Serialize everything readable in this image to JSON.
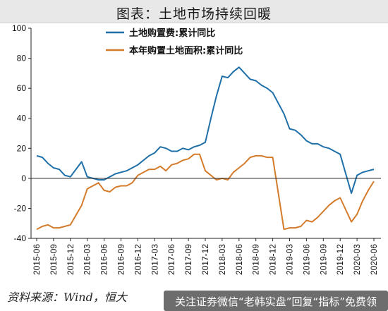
{
  "title": "图表：土地市场持续回暖",
  "source_text": "资料来源：Wind，恒大",
  "banner_text": "关注证券微信“老韩实盘”回复“指标”免费领",
  "chart_data": {
    "type": "line",
    "ylim": [
      -40,
      100
    ],
    "yticks": [
      -40,
      -20,
      0,
      20,
      40,
      60,
      80,
      100
    ],
    "xtick_labels": [
      "2015-06",
      "2015-09",
      "2015-12",
      "2016-03",
      "2016-06",
      "2016-09",
      "2016-12",
      "2017-03",
      "2017-06",
      "2017-09",
      "2017-12",
      "2018-03",
      "2018-06",
      "2018-09",
      "2018-12",
      "2019-03",
      "2019-06",
      "2019-09",
      "2019-12",
      "2020-03",
      "2020-06"
    ],
    "grid": false,
    "legend": "top-left",
    "series": [
      {
        "name": "土地购置费:累计同比",
        "color": "#1f6fa8",
        "points": [
          [
            "2015-06",
            15
          ],
          [
            "2015-07",
            14
          ],
          [
            "2015-08",
            10
          ],
          [
            "2015-09",
            7
          ],
          [
            "2015-10",
            6
          ],
          [
            "2015-11",
            2
          ],
          [
            "2015-12",
            1
          ],
          [
            "2016-02",
            11
          ],
          [
            "2016-03",
            1
          ],
          [
            "2016-04",
            0
          ],
          [
            "2016-05",
            -1
          ],
          [
            "2016-06",
            -1
          ],
          [
            "2016-07",
            1
          ],
          [
            "2016-08",
            3
          ],
          [
            "2016-09",
            4
          ],
          [
            "2016-10",
            5
          ],
          [
            "2016-11",
            7
          ],
          [
            "2016-12",
            9
          ],
          [
            "2017-02",
            15
          ],
          [
            "2017-03",
            17
          ],
          [
            "2017-04",
            21
          ],
          [
            "2017-05",
            20
          ],
          [
            "2017-06",
            18
          ],
          [
            "2017-07",
            18
          ],
          [
            "2017-08",
            20
          ],
          [
            "2017-09",
            19
          ],
          [
            "2017-10",
            21
          ],
          [
            "2017-11",
            22
          ],
          [
            "2017-12",
            24
          ],
          [
            "2018-01",
            40
          ],
          [
            "2018-02",
            55
          ],
          [
            "2018-03",
            68
          ],
          [
            "2018-04",
            67
          ],
          [
            "2018-05",
            71
          ],
          [
            "2018-06",
            74
          ],
          [
            "2018-07",
            70
          ],
          [
            "2018-08",
            66
          ],
          [
            "2018-09",
            65
          ],
          [
            "2018-10",
            62
          ],
          [
            "2018-11",
            60
          ],
          [
            "2018-12",
            57
          ],
          [
            "2019-02",
            43
          ],
          [
            "2019-03",
            33
          ],
          [
            "2019-04",
            32
          ],
          [
            "2019-05",
            29
          ],
          [
            "2019-06",
            25
          ],
          [
            "2019-07",
            23
          ],
          [
            "2019-08",
            23
          ],
          [
            "2019-09",
            21
          ],
          [
            "2019-10",
            20
          ],
          [
            "2019-11",
            18
          ],
          [
            "2019-12",
            16
          ],
          [
            "2020-02",
            -10
          ],
          [
            "2020-03",
            2
          ],
          [
            "2020-04",
            4
          ],
          [
            "2020-05",
            5
          ],
          [
            "2020-06",
            6
          ]
        ]
      },
      {
        "name": "本年购置土地面积:累计同比",
        "color": "#d47c2c",
        "points": [
          [
            "2015-06",
            -34
          ],
          [
            "2015-07",
            -32
          ],
          [
            "2015-08",
            -31
          ],
          [
            "2015-09",
            -33
          ],
          [
            "2015-10",
            -33
          ],
          [
            "2015-11",
            -32
          ],
          [
            "2015-12",
            -31
          ],
          [
            "2016-02",
            -18
          ],
          [
            "2016-03",
            -7
          ],
          [
            "2016-04",
            -5
          ],
          [
            "2016-05",
            -3
          ],
          [
            "2016-06",
            -8
          ],
          [
            "2016-07",
            -9
          ],
          [
            "2016-08",
            -6
          ],
          [
            "2016-09",
            -5
          ],
          [
            "2016-10",
            -5
          ],
          [
            "2016-11",
            -3
          ],
          [
            "2016-12",
            2
          ],
          [
            "2017-02",
            6
          ],
          [
            "2017-03",
            6
          ],
          [
            "2017-04",
            8
          ],
          [
            "2017-05",
            5
          ],
          [
            "2017-06",
            9
          ],
          [
            "2017-07",
            10
          ],
          [
            "2017-08",
            12
          ],
          [
            "2017-09",
            13
          ],
          [
            "2017-10",
            16
          ],
          [
            "2017-11",
            16
          ],
          [
            "2017-12",
            5
          ],
          [
            "2018-02",
            -1
          ],
          [
            "2018-03",
            0
          ],
          [
            "2018-04",
            -1
          ],
          [
            "2018-05",
            4
          ],
          [
            "2018-06",
            7
          ],
          [
            "2018-07",
            10
          ],
          [
            "2018-08",
            14
          ],
          [
            "2018-09",
            15
          ],
          [
            "2018-10",
            15
          ],
          [
            "2018-11",
            14
          ],
          [
            "2018-12",
            14
          ],
          [
            "2019-02",
            -34
          ],
          [
            "2019-03",
            -33
          ],
          [
            "2019-04",
            -33
          ],
          [
            "2019-05",
            -32
          ],
          [
            "2019-06",
            -28
          ],
          [
            "2019-07",
            -29
          ],
          [
            "2019-08",
            -26
          ],
          [
            "2019-09",
            -22
          ],
          [
            "2019-10",
            -18
          ],
          [
            "2019-11",
            -15
          ],
          [
            "2019-12",
            -13
          ],
          [
            "2020-02",
            -29
          ],
          [
            "2020-03",
            -24
          ],
          [
            "2020-04",
            -15
          ],
          [
            "2020-05",
            -8
          ],
          [
            "2020-06",
            -2
          ]
        ]
      }
    ]
  }
}
